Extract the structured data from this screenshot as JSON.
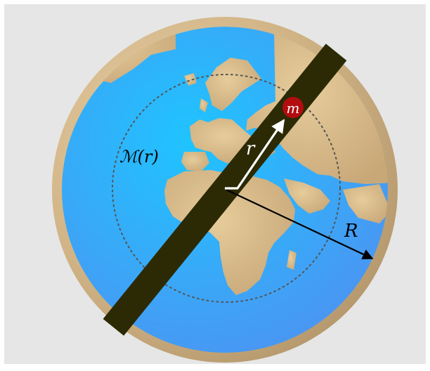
{
  "diagram": {
    "labels": {
      "mass_function": "ℳ(r)",
      "radius_small": "r",
      "radius_large": "R",
      "mass": "m"
    },
    "colors": {
      "panel_background": "#e6e6e6",
      "ocean": "#3aa0f0",
      "land": "#d6b98c",
      "rim": "#c6a57a",
      "tunnel": "#2c2a05",
      "mass_fill": "#b30d10",
      "small_vector": "#ffffff",
      "large_vector": "#000000",
      "dotted_circle": "#555555"
    },
    "icons": [
      "earth-globe",
      "tunnel-through-earth",
      "mass-ball",
      "radius-arrow",
      "dotted-radius-circle"
    ]
  }
}
